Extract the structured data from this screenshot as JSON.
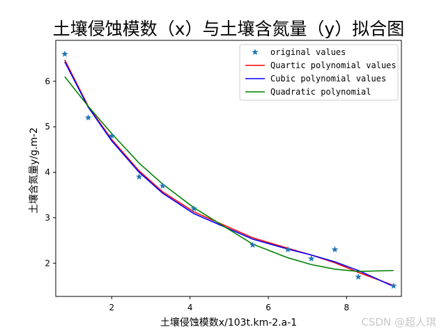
{
  "chart_data": {
    "type": "line",
    "title": "土壤侵蚀模数（x）与土壤含氮量（y）拟合图",
    "xlabel": "土壤侵蚀模数x/103t.km-2.a-1",
    "ylabel": "土壤含氮量y/g.m-2",
    "xlim": [
      0.57,
      9.4
    ],
    "ylim": [
      1.27,
      6.9
    ],
    "x_ticks": [
      2,
      4,
      6,
      8
    ],
    "y_ticks": [
      2,
      3,
      4,
      5,
      6
    ],
    "legend_position": "top-right",
    "grid": false,
    "series": [
      {
        "name": "original values",
        "kind": "scatter",
        "marker": "star",
        "color": "#1f77b4",
        "x": [
          0.8,
          1.4,
          2.0,
          2.7,
          3.3,
          4.1,
          5.6,
          6.5,
          7.1,
          7.7,
          8.3,
          9.2
        ],
        "y": [
          6.6,
          5.2,
          4.8,
          3.9,
          3.7,
          3.2,
          2.4,
          2.3,
          2.1,
          2.3,
          1.7,
          1.5
        ]
      },
      {
        "name": "Quartic polynomial values",
        "kind": "line",
        "color": "#ff0000",
        "x": [
          0.8,
          1.4,
          2.0,
          2.7,
          3.3,
          4.1,
          5.6,
          6.5,
          7.1,
          7.7,
          8.3,
          9.2
        ],
        "y": [
          6.47,
          5.45,
          4.72,
          4.03,
          3.57,
          3.13,
          2.56,
          2.33,
          2.18,
          2.01,
          1.8,
          1.51
        ]
      },
      {
        "name": "Cubic polynomial values",
        "kind": "line",
        "color": "#0000ff",
        "x": [
          0.8,
          1.4,
          2.0,
          2.7,
          3.3,
          4.1,
          5.6,
          6.5,
          7.1,
          7.7,
          8.3,
          9.2
        ],
        "y": [
          6.43,
          5.43,
          4.69,
          4.0,
          3.54,
          3.09,
          2.53,
          2.31,
          2.18,
          2.03,
          1.84,
          1.49
        ]
      },
      {
        "name": "Quadratic polynomial",
        "kind": "line",
        "color": "#008000",
        "x": [
          0.8,
          1.4,
          2.0,
          2.7,
          3.3,
          4.1,
          5.6,
          6.5,
          7.1,
          7.7,
          8.3,
          9.2
        ],
        "y": [
          6.1,
          5.45,
          4.85,
          4.2,
          3.74,
          3.22,
          2.42,
          2.12,
          1.97,
          1.87,
          1.82,
          1.84
        ]
      }
    ]
  },
  "watermark": "CSDN @超人琪"
}
